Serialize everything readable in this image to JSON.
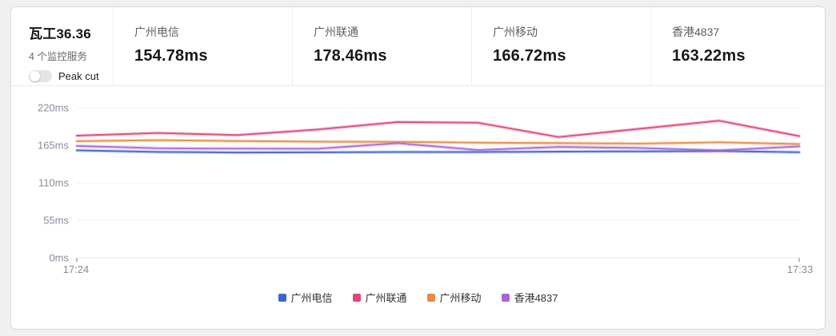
{
  "header": {
    "title": "瓦工36.36",
    "subtitle": "4 个监控服务",
    "peak_cut_label": "Peak cut",
    "peak_cut_enabled": false
  },
  "metrics": [
    {
      "label": "广州电信",
      "value": "154.78ms"
    },
    {
      "label": "广州联通",
      "value": "178.46ms"
    },
    {
      "label": "广州移动",
      "value": "166.72ms"
    },
    {
      "label": "香港4837",
      "value": "163.22ms"
    }
  ],
  "chart_data": {
    "type": "line",
    "title": "",
    "xlabel": "",
    "ylabel": "",
    "ylim": [
      0,
      220
    ],
    "y_tick_labels": [
      "0ms",
      "55ms",
      "110ms",
      "165ms",
      "220ms"
    ],
    "y_tick_values": [
      0,
      55,
      110,
      165,
      220
    ],
    "x_visible_labels": [
      "17:24",
      "17:33"
    ],
    "x_points": [
      "17:24",
      "17:25",
      "17:26",
      "17:27",
      "17:28",
      "17:29",
      "17:30",
      "17:31",
      "17:32",
      "17:33"
    ],
    "grid": true,
    "legend_position": "bottom",
    "series": [
      {
        "name": "广州电信",
        "color": "#3d64cc",
        "values": [
          157.5,
          155.2,
          154.3,
          154.6,
          155.0,
          155.1,
          155.6,
          156.0,
          156.4,
          154.78
        ]
      },
      {
        "name": "广州联通",
        "color": "#e0457b",
        "values": [
          179,
          183,
          180,
          188,
          199,
          198,
          177,
          189,
          201,
          178.46
        ]
      },
      {
        "name": "广州移动",
        "color": "#e78b42",
        "values": [
          171,
          172.5,
          171.2,
          170.3,
          170.0,
          168.8,
          168.2,
          167.5,
          169.3,
          166.72
        ]
      },
      {
        "name": "香港4837",
        "color": "#a866d9",
        "values": [
          164,
          160.5,
          160,
          159.8,
          168,
          158,
          162.5,
          161,
          157.5,
          163.22
        ]
      }
    ],
    "axis_colors": {
      "grid": "#f2f2f3",
      "baseline": "#e8e9ec",
      "tick": "#a8a8a8",
      "label": "#878b97"
    }
  }
}
